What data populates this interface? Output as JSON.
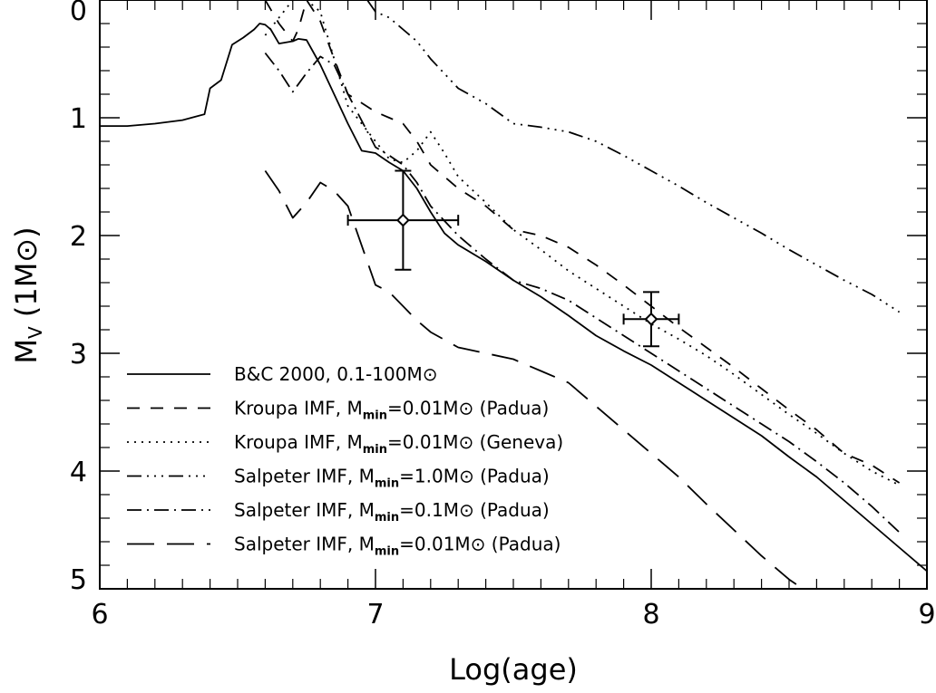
{
  "chart_data": {
    "type": "line",
    "xlabel": "Log(age)",
    "ylabel": "M_V (1M⊙)",
    "ylabel_main": "M",
    "ylabel_sub": "V",
    "ylabel_rest": " (1M⊙)",
    "xlim": [
      6,
      9
    ],
    "ylim": [
      5,
      0
    ],
    "y_inverted": true,
    "grid": false,
    "legend_position": "bottom-left",
    "x_ticks": [
      "6",
      "7",
      "8",
      "9"
    ],
    "y_ticks": [
      "0",
      "1",
      "2",
      "3",
      "4",
      "5"
    ],
    "series": [
      {
        "name": "B&C 2000, 0.1-100M⊙",
        "legend": {
          "pre": "B&C 2000, 0.1-100M⊙",
          "sub": "",
          "post": ""
        },
        "dash": "",
        "x": [
          6.0,
          6.1,
          6.2,
          6.3,
          6.38,
          6.4,
          6.44,
          6.48,
          6.52,
          6.56,
          6.58,
          6.6,
          6.62,
          6.65,
          6.7,
          6.72,
          6.75,
          6.8,
          6.85,
          6.9,
          6.95,
          7.0,
          7.05,
          7.1,
          7.15,
          7.2,
          7.25,
          7.3,
          7.4,
          7.5,
          7.6,
          7.7,
          7.8,
          7.9,
          8.0,
          8.1,
          8.2,
          8.3,
          8.4,
          8.5,
          8.6,
          8.7,
          8.8,
          8.9,
          9.0
        ],
        "y": [
          1.07,
          1.07,
          1.05,
          1.02,
          0.97,
          0.75,
          0.68,
          0.38,
          0.32,
          0.25,
          0.2,
          0.21,
          0.25,
          0.37,
          0.35,
          0.33,
          0.34,
          0.55,
          0.8,
          1.05,
          1.28,
          1.3,
          1.38,
          1.45,
          1.6,
          1.8,
          1.98,
          2.08,
          2.22,
          2.38,
          2.52,
          2.68,
          2.85,
          2.98,
          3.1,
          3.25,
          3.4,
          3.55,
          3.7,
          3.88,
          4.05,
          4.25,
          4.45,
          4.65,
          4.85
        ]
      },
      {
        "name": "Kroupa IMF, Mmin=0.01M⊙ (Padua)",
        "legend": {
          "pre": "Kroupa IMF, M",
          "sub": "min",
          "post": "=0.01M⊙ (Padua)"
        },
        "dash": "14,12",
        "x": [
          6.6,
          6.65,
          6.7,
          6.72,
          6.75,
          6.8,
          6.85,
          6.9,
          7.0,
          7.05,
          7.1,
          7.15,
          7.2,
          7.3,
          7.4,
          7.5,
          7.6,
          7.7,
          7.8,
          7.9,
          8.0,
          8.1,
          8.2,
          8.3,
          8.4,
          8.5,
          8.6,
          8.7,
          8.8,
          8.9
        ],
        "y": [
          0.0,
          0.2,
          0.35,
          0.25,
          0.0,
          0.18,
          0.5,
          0.8,
          0.95,
          1.0,
          1.05,
          1.2,
          1.4,
          1.6,
          1.75,
          1.95,
          2.0,
          2.1,
          2.25,
          2.42,
          2.6,
          2.78,
          2.95,
          3.12,
          3.3,
          3.48,
          3.65,
          3.85,
          3.95,
          4.1
        ]
      },
      {
        "name": "Kroupa IMF, Mmin=0.01M⊙ (Geneva)",
        "legend": {
          "pre": "Kroupa IMF, M",
          "sub": "min",
          "post": "=0.01M⊙ (Geneva)"
        },
        "dash": "2,6",
        "x": [
          6.6,
          6.65,
          6.7,
          6.75,
          6.8,
          6.85,
          6.9,
          7.0,
          7.05,
          7.1,
          7.15,
          7.2,
          7.25,
          7.3,
          7.4,
          7.5,
          7.6,
          7.7,
          7.8,
          7.9,
          8.0,
          8.1,
          8.2,
          8.3,
          8.4,
          8.5,
          8.6,
          8.7,
          8.8,
          8.9
        ],
        "y": [
          0.3,
          0.15,
          0.0,
          0.0,
          0.1,
          0.5,
          0.9,
          1.2,
          1.35,
          1.38,
          1.28,
          1.12,
          1.3,
          1.5,
          1.72,
          1.95,
          2.12,
          2.3,
          2.45,
          2.6,
          2.75,
          2.88,
          3.02,
          3.18,
          3.35,
          3.52,
          3.68,
          3.85,
          4.0,
          4.12
        ]
      },
      {
        "name": "Salpeter IMF, Mmin=1.0M⊙ (Padua)",
        "legend": {
          "pre": "Salpeter IMF, M",
          "sub": "min",
          "post": "=1.0M⊙ (Padua)"
        },
        "dash": "16,6,2,6,2,6,2,6",
        "x": [
          6.97,
          7.0,
          7.05,
          7.1,
          7.15,
          7.2,
          7.3,
          7.4,
          7.5,
          7.6,
          7.7,
          7.8,
          7.9,
          8.0,
          8.1,
          8.2,
          8.3,
          8.4,
          8.5,
          8.6,
          8.7,
          8.8,
          8.9
        ],
        "y": [
          0.0,
          0.1,
          0.15,
          0.25,
          0.35,
          0.5,
          0.75,
          0.88,
          1.05,
          1.08,
          1.12,
          1.2,
          1.32,
          1.45,
          1.58,
          1.72,
          1.85,
          1.98,
          2.12,
          2.25,
          2.38,
          2.5,
          2.65
        ]
      },
      {
        "name": "Salpeter IMF, Mmin=0.1M⊙ (Padua)",
        "legend": {
          "pre": "Salpeter IMF, M",
          "sub": "min",
          "post": "=0.1M⊙ (Padua)"
        },
        "dash": "16,6,2,6",
        "x": [
          6.6,
          6.65,
          6.7,
          6.75,
          6.8,
          6.85,
          6.9,
          7.0,
          7.05,
          7.1,
          7.15,
          7.2,
          7.3,
          7.4,
          7.5,
          7.6,
          7.7,
          7.8,
          7.9,
          8.0,
          8.1,
          8.2,
          8.3,
          8.4,
          8.5,
          8.6,
          8.7,
          8.8,
          8.9
        ],
        "y": [
          0.45,
          0.6,
          0.78,
          0.62,
          0.48,
          0.55,
          0.8,
          1.25,
          1.32,
          1.4,
          1.55,
          1.75,
          2.0,
          2.2,
          2.38,
          2.45,
          2.55,
          2.7,
          2.85,
          3.0,
          3.15,
          3.3,
          3.45,
          3.6,
          3.75,
          3.92,
          4.1,
          4.3,
          4.52
        ]
      },
      {
        "name": "Salpeter IMF, Mmin=0.01M⊙ (Padua)",
        "legend": {
          "pre": "Salpeter IMF, M",
          "sub": "min",
          "post": "=0.01M⊙ (Padua)"
        },
        "dash": "30,14",
        "x": [
          6.6,
          6.65,
          6.7,
          6.75,
          6.8,
          6.85,
          6.9,
          7.0,
          7.05,
          7.1,
          7.15,
          7.2,
          7.3,
          7.4,
          7.5,
          7.6,
          7.7,
          7.8,
          7.9,
          8.0,
          8.1,
          8.2,
          8.3,
          8.4,
          8.5,
          8.55
        ],
        "y": [
          1.45,
          1.62,
          1.85,
          1.72,
          1.55,
          1.62,
          1.75,
          2.42,
          2.48,
          2.6,
          2.72,
          2.82,
          2.95,
          3.0,
          3.05,
          3.15,
          3.25,
          3.45,
          3.65,
          3.85,
          4.05,
          4.28,
          4.5,
          4.72,
          4.92,
          5.0
        ]
      }
    ],
    "error_points": [
      {
        "x": 7.1,
        "y": 1.87,
        "x_err": 0.2,
        "y_err": 0.42
      },
      {
        "x": 8.0,
        "y": 2.71,
        "x_err": 0.1,
        "y_err": 0.23
      }
    ]
  }
}
